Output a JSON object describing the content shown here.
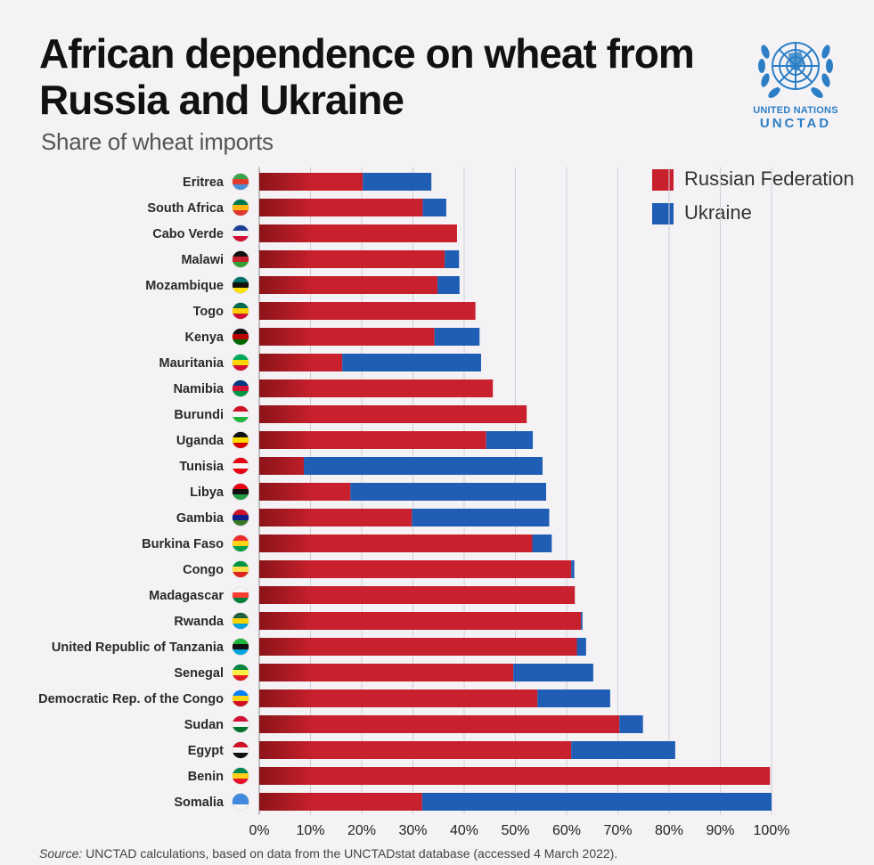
{
  "title": "African dependence on wheat from Russia and Ukraine",
  "subtitle": "Share of wheat imports",
  "logo": {
    "line1": "UNITED NATIONS",
    "line2": "UNCTAD",
    "icon": "un-emblem-icon"
  },
  "source": {
    "label": "Source:",
    "text": " UNCTAD calculations, based on data from the UNCTADstat database (accessed 4 March 2022)."
  },
  "colors": {
    "russia": "#c8202c",
    "russia_dark": "#8a1419",
    "ukraine": "#1f5eb4",
    "grid": "#cfcfd4"
  },
  "chart_data": {
    "type": "bar",
    "orientation": "horizontal",
    "stacked": true,
    "xlim": [
      0,
      100
    ],
    "x_ticks": [
      "0%",
      "10%",
      "20%",
      "30%",
      "40%",
      "50%",
      "60%",
      "70%",
      "80%",
      "90%",
      "100%"
    ],
    "legend_position": "top-right",
    "grid": true,
    "categories": [
      "Eritrea",
      "South Africa",
      "Cabo Verde",
      "Malawi",
      "Mozambique",
      "Togo",
      "Kenya",
      "Mauritania",
      "Namibia",
      "Burundi",
      "Uganda",
      "Tunisia",
      "Libya",
      "Gambia",
      "Burkina Faso",
      "Congo",
      "Madagascar",
      "Rwanda",
      "United Republic of Tanzania",
      "Senegal",
      "Democratic Rep. of the Congo",
      "Sudan",
      "Egypt",
      "Benin",
      "Somalia"
    ],
    "series": [
      {
        "name": "Russian Federation",
        "values": [
          20.2,
          31.9,
          38.6,
          36.2,
          34.8,
          42.2,
          34.2,
          16.2,
          45.6,
          52.2,
          44.3,
          8.7,
          17.8,
          29.8,
          53.3,
          60.9,
          61.6,
          62.8,
          62.0,
          49.6,
          54.3,
          70.3,
          60.9,
          99.7,
          31.8
        ]
      },
      {
        "name": "Ukraine",
        "values": [
          13.4,
          4.6,
          0,
          2.8,
          4.3,
          0,
          8.8,
          27.1,
          0,
          0,
          9.1,
          46.6,
          38.2,
          26.8,
          3.8,
          0.6,
          0,
          0.3,
          1.8,
          15.6,
          14.2,
          4.6,
          20.3,
          0,
          68.2
        ]
      }
    ]
  }
}
